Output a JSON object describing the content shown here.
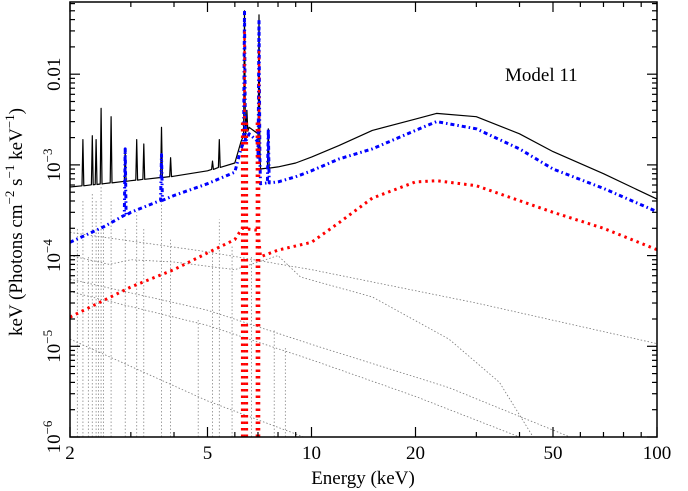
{
  "chart_data": {
    "type": "line",
    "annotation": "Model 11",
    "xlabel": "Energy (keV)",
    "ylabel_parts": [
      {
        "t": "keV (Photons cm",
        "sup": false
      },
      {
        "t": "−2",
        "sup": true
      },
      {
        "t": " s",
        "sup": false
      },
      {
        "t": "−1",
        "sup": true
      },
      {
        "t": " keV",
        "sup": false
      },
      {
        "t": "−1",
        "sup": true
      },
      {
        "t": ")",
        "sup": false
      }
    ],
    "xscale": "log",
    "yscale": "log",
    "xlim": [
      2,
      100
    ],
    "ylim": [
      1e-06,
      0.0625
    ],
    "grid": false,
    "x_ticks": [
      {
        "value": 2,
        "label": "2"
      },
      {
        "value": 5,
        "label": "5"
      },
      {
        "value": 10,
        "label": "10"
      },
      {
        "value": 20,
        "label": "20"
      },
      {
        "value": 50,
        "label": "50"
      },
      {
        "value": 100,
        "label": "100"
      }
    ],
    "y_ticks": [
      {
        "value": 1e-06,
        "base": "10",
        "exp": "−6"
      },
      {
        "value": 1e-05,
        "base": "10",
        "exp": "−5"
      },
      {
        "value": 0.0001,
        "base": "10",
        "exp": "−4"
      },
      {
        "value": 0.001,
        "base": "10",
        "exp": "−3"
      },
      {
        "value": 0.01,
        "base": "0.01",
        "exp": ""
      }
    ],
    "series": [
      {
        "id": "total",
        "color": "#000000",
        "style": "solid",
        "continuum": [
          [
            2,
            0.00057
          ],
          [
            2.5,
            0.00062
          ],
          [
            3,
            0.00067
          ],
          [
            4,
            0.00075
          ],
          [
            5,
            0.00086
          ],
          [
            6,
            0.00105
          ],
          [
            6.25,
            0.0018
          ],
          [
            6.6,
            0.0026
          ],
          [
            7.0,
            0.0022
          ],
          [
            7.12,
            0.0009
          ],
          [
            8,
            0.00095
          ],
          [
            9,
            0.00105
          ],
          [
            10,
            0.00122
          ],
          [
            12,
            0.00163
          ],
          [
            15,
            0.0024
          ],
          [
            20,
            0.0032
          ],
          [
            23,
            0.0037
          ],
          [
            30,
            0.0034
          ],
          [
            40,
            0.0022
          ],
          [
            50,
            0.0014
          ],
          [
            70,
            0.0008
          ],
          [
            100,
            0.00042
          ]
        ],
        "lines": [
          [
            2.18,
            0.0019
          ],
          [
            2.32,
            0.0021
          ],
          [
            2.38,
            0.0019
          ],
          [
            2.46,
            0.0042
          ],
          [
            2.63,
            0.0034
          ],
          [
            2.89,
            0.0014
          ],
          [
            3.12,
            0.0019
          ],
          [
            3.27,
            0.0017
          ],
          [
            3.68,
            0.0026
          ],
          [
            3.91,
            0.0012
          ],
          [
            5.17,
            0.0011
          ],
          [
            5.41,
            0.0019
          ],
          [
            6.4,
            0.05
          ],
          [
            6.5,
            0.004
          ],
          [
            7.05,
            0.045
          ],
          [
            7.5,
            0.0025
          ]
        ]
      },
      {
        "id": "component-blue",
        "color": "#0000ff",
        "style": "dashdot",
        "continuum": [
          [
            2,
            0.00014
          ],
          [
            2.5,
            0.000207
          ],
          [
            3,
            0.0003
          ],
          [
            4,
            0.00046
          ],
          [
            5,
            0.00062
          ],
          [
            6,
            0.00083
          ],
          [
            6.25,
            0.0015
          ],
          [
            6.6,
            0.0022
          ],
          [
            7.0,
            0.0018
          ],
          [
            7.12,
            0.00062
          ],
          [
            8,
            0.00065
          ],
          [
            9,
            0.00074
          ],
          [
            10,
            0.00086
          ],
          [
            12,
            0.00116
          ],
          [
            15,
            0.0015
          ],
          [
            20,
            0.0024
          ],
          [
            23,
            0.003
          ],
          [
            30,
            0.0025
          ],
          [
            40,
            0.0015
          ],
          [
            50,
            0.0009
          ],
          [
            70,
            0.00055
          ],
          [
            100,
            0.000305
          ]
        ],
        "lines": [
          [
            2.89,
            0.0015
          ],
          [
            3.68,
            0.0013
          ],
          [
            6.4,
            0.05
          ],
          [
            7.05,
            0.04
          ],
          [
            7.5,
            0.0025
          ]
        ]
      },
      {
        "id": "component-red",
        "color": "#ff0000",
        "style": "dotted-thick",
        "continuum": [
          [
            2,
            2.1e-05
          ],
          [
            3,
            4.5e-05
          ],
          [
            4,
            7e-05
          ],
          [
            5,
            0.000107
          ],
          [
            6,
            0.00015
          ],
          [
            6.3,
            0.0002
          ],
          [
            7.0,
            0.00019
          ],
          [
            7.12,
            9.7e-05
          ],
          [
            8,
            0.000115
          ],
          [
            10,
            0.00014
          ],
          [
            12,
            0.00023
          ],
          [
            15,
            0.00043
          ],
          [
            20,
            0.00065
          ],
          [
            23,
            0.00067
          ],
          [
            30,
            0.00059
          ],
          [
            50,
            0.0003
          ],
          [
            70,
            0.0002
          ],
          [
            100,
            0.000116
          ]
        ],
        "lines": [
          [
            6.3,
            0.003
          ],
          [
            6.4,
            0.03
          ],
          [
            6.5,
            0.003
          ],
          [
            6.95,
            0.003
          ],
          [
            7.05,
            0.02
          ]
        ]
      }
    ],
    "gray_components": [
      [
        [
          2,
          0.00018
        ],
        [
          5,
          0.00011
        ],
        [
          10,
          7e-05
        ],
        [
          30,
          3e-05
        ],
        [
          100,
          1.07e-05
        ]
      ],
      [
        [
          2,
          0.0001
        ],
        [
          2.6,
          8e-05
        ],
        [
          3,
          9e-05
        ],
        [
          4,
          8.5e-05
        ],
        [
          6,
          7e-05
        ],
        [
          8,
          0.0001
        ],
        [
          9.3,
          5.8e-05
        ],
        [
          15,
          3.5e-05
        ],
        [
          25,
          1.2e-05
        ],
        [
          35,
          4e-06
        ],
        [
          43.8,
          1e-06
        ]
      ],
      [
        [
          2,
          5.5e-05
        ],
        [
          5,
          2.5e-05
        ],
        [
          10,
          1.05e-05
        ],
        [
          25,
          3.5e-06
        ],
        [
          56,
          1e-06
        ]
      ],
      [
        [
          2,
          4e-05
        ],
        [
          5,
          1.7e-05
        ],
        [
          10,
          7.1e-06
        ],
        [
          20,
          2.8e-06
        ],
        [
          40,
          1e-06
        ]
      ],
      [
        [
          2,
          1.2e-05
        ],
        [
          3,
          6e-06
        ],
        [
          5,
          2.5e-06
        ],
        [
          9.5,
          1e-06
        ]
      ]
    ],
    "gray_lines": [
      [
        2.1,
        0.0002
      ],
      [
        2.18,
        0.0004
      ],
      [
        2.26,
        0.0001
      ],
      [
        2.32,
        0.0005
      ],
      [
        2.38,
        0.0004
      ],
      [
        2.42,
        0.0002
      ],
      [
        2.46,
        0.0006
      ],
      [
        2.5,
        0.0002
      ],
      [
        2.63,
        0.0004
      ],
      [
        2.89,
        0.0002
      ],
      [
        3.12,
        0.0003
      ],
      [
        3.27,
        0.0002
      ],
      [
        3.68,
        0.0004
      ],
      [
        3.91,
        0.00015
      ],
      [
        4.7,
        2e-05
      ],
      [
        5.17,
        0.00012
      ],
      [
        5.41,
        0.00025
      ],
      [
        5.89,
        0.00013
      ],
      [
        6.7,
        0.0001
      ],
      [
        7.8,
        1.5e-05
      ],
      [
        8.4,
        1e-05
      ]
    ]
  }
}
